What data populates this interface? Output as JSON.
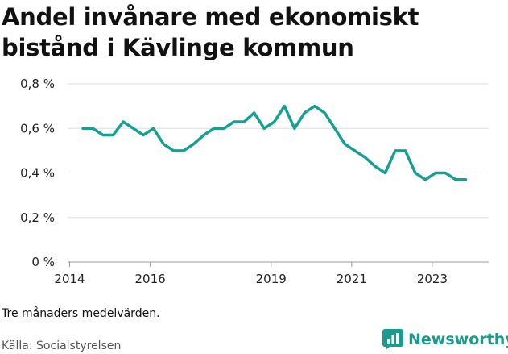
{
  "chart_data": {
    "type": "line",
    "title": "Andel invånare med ekonomiskt bistånd i Kävlinge kommun",
    "xlabel": "",
    "ylabel": "",
    "xlim": [
      2013.95,
      2024.4
    ],
    "ylim": [
      0,
      0.8
    ],
    "x_ticks": [
      2014,
      2016,
      2019,
      2021,
      2023
    ],
    "y_ticks": [
      0,
      0.2,
      0.4,
      0.6,
      0.8
    ],
    "y_tick_labels": [
      "0 %",
      "0,2 %",
      "0,4 %",
      "0,6 %",
      "0,8 %"
    ],
    "grid": true,
    "line_color": "#15a092",
    "series": [
      {
        "x": [
          2014.33,
          2014.58,
          2014.83,
          2015.08,
          2015.33,
          2015.58,
          2015.83,
          2016.08,
          2016.33,
          2016.58,
          2016.83,
          2017.08,
          2017.33,
          2017.58,
          2017.83,
          2018.08,
          2018.33,
          2018.58,
          2018.83,
          2019.08,
          2019.33,
          2019.58,
          2019.83,
          2020.08,
          2020.33,
          2020.58,
          2020.83,
          2021.08,
          2021.33,
          2021.58,
          2021.83,
          2022.08,
          2022.33,
          2022.58,
          2022.83,
          2023.08,
          2023.33,
          2023.58,
          2023.83
        ],
        "values": [
          0.6,
          0.6,
          0.57,
          0.57,
          0.63,
          0.6,
          0.57,
          0.6,
          0.53,
          0.5,
          0.5,
          0.53,
          0.57,
          0.6,
          0.6,
          0.63,
          0.63,
          0.67,
          0.6,
          0.63,
          0.7,
          0.6,
          0.67,
          0.7,
          0.67,
          0.6,
          0.53,
          0.5,
          0.47,
          0.43,
          0.4,
          0.5,
          0.5,
          0.4,
          0.37,
          0.4,
          0.4,
          0.37,
          0.37
        ]
      }
    ]
  },
  "header": {
    "title": "Andel invånare med ekonomiskt bistånd i Kävlinge kommun"
  },
  "footer": {
    "note": "Tre månaders medelvärden.",
    "source": "Källa: Socialstyrelsen",
    "brand": "Newsworthy",
    "brand_icon": "newsworthy-logo-icon",
    "brand_color": "#1a9b8c"
  }
}
